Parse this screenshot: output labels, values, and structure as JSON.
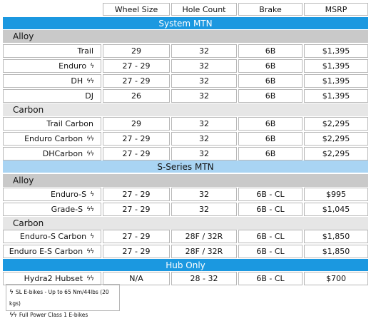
{
  "headers": [
    "Wheel Size",
    "Hole Count",
    "Brake",
    "MSRP"
  ],
  "sections": {
    "system_mtn": "System MTN",
    "s_series_mtn": "S-Series MTN",
    "hub_only": "Hub Only"
  },
  "subsections": {
    "alloy": "Alloy",
    "carbon": "Carbon"
  },
  "system_alloy": [
    {
      "name": "Trail",
      "bolts": "",
      "wheel": "29",
      "holes": "32",
      "brake": "6B",
      "msrp": "$1,395"
    },
    {
      "name": "Enduro",
      "bolts": "ϟ",
      "wheel": "27 - 29",
      "holes": "32",
      "brake": "6B",
      "msrp": "$1,395"
    },
    {
      "name": "DH",
      "bolts": "ϟϟ",
      "wheel": "27 - 29",
      "holes": "32",
      "brake": "6B",
      "msrp": "$1,395"
    },
    {
      "name": "DJ",
      "bolts": "",
      "wheel": "26",
      "holes": "32",
      "brake": "6B",
      "msrp": "$1,395"
    }
  ],
  "system_carbon": [
    {
      "name": "Trail Carbon",
      "bolts": "",
      "wheel": "29",
      "holes": "32",
      "brake": "6B",
      "msrp": "$2,295"
    },
    {
      "name": "Enduro Carbon",
      "bolts": "ϟϟ",
      "wheel": "27 - 29",
      "holes": "32",
      "brake": "6B",
      "msrp": "$2,295"
    },
    {
      "name": "DHCarbon",
      "bolts": "ϟϟ",
      "wheel": "27 - 29",
      "holes": "32",
      "brake": "6B",
      "msrp": "$2,295"
    }
  ],
  "s_alloy": [
    {
      "name": "Enduro-S",
      "bolts": "ϟ",
      "wheel": "27 - 29",
      "holes": "32",
      "brake": "6B - CL",
      "msrp": "$995"
    },
    {
      "name": "Grade-S",
      "bolts": "ϟϟ",
      "wheel": "27 - 29",
      "holes": "32",
      "brake": "6B - CL",
      "msrp": "$1,045"
    }
  ],
  "s_carbon": [
    {
      "name": "Enduro-S Carbon",
      "bolts": "ϟ",
      "wheel": "27 - 29",
      "holes": "28F / 32R",
      "brake": "6B - CL",
      "msrp": "$1,850"
    },
    {
      "name": "Enduro E-S Carbon",
      "bolts": "ϟϟ",
      "wheel": "27 - 29",
      "holes": "28F / 32R",
      "brake": "6B - CL",
      "msrp": "$1,850"
    }
  ],
  "hub_only": [
    {
      "name": "Hydra2 Hubset",
      "bolts": "ϟϟ",
      "wheel": "N/A",
      "holes": "28 - 32",
      "brake": "6B - CL",
      "msrp": "$700"
    }
  ],
  "legend": {
    "single_bolt": "ϟ",
    "single_text": "SL E-bikes - Up to 65 Nm/44lbs (20 kgs)",
    "double_bolt": "ϟϟ",
    "double_text": "Full Power Class 1 E-bikes"
  }
}
